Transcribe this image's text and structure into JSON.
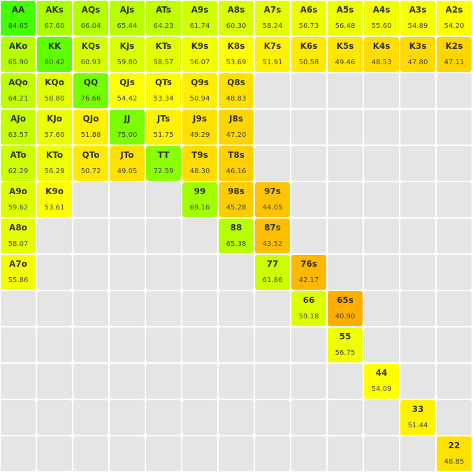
{
  "colors": {
    "empty": "#e5e5e5",
    "text": "#333333"
  },
  "ranks": [
    "A",
    "K",
    "Q",
    "J",
    "T",
    "9",
    "8",
    "7",
    "6",
    "5",
    "4",
    "3",
    "2"
  ],
  "rows": [
    [
      {
        "hand": "AA",
        "equity": "84.65"
      },
      {
        "hand": "AKs",
        "equity": "67.60"
      },
      {
        "hand": "AQs",
        "equity": "66.04"
      },
      {
        "hand": "AJs",
        "equity": "65.44"
      },
      {
        "hand": "ATs",
        "equity": "64.23"
      },
      {
        "hand": "A9s",
        "equity": "61.74"
      },
      {
        "hand": "A8s",
        "equity": "60.30"
      },
      {
        "hand": "A7s",
        "equity": "58.24"
      },
      {
        "hand": "A6s",
        "equity": "56.73"
      },
      {
        "hand": "A5s",
        "equity": "56.48"
      },
      {
        "hand": "A4s",
        "equity": "55.60"
      },
      {
        "hand": "A3s",
        "equity": "54.89"
      },
      {
        "hand": "A2s",
        "equity": "54.20"
      }
    ],
    [
      {
        "hand": "AKo",
        "equity": "65.90"
      },
      {
        "hand": "KK",
        "equity": "80.42"
      },
      {
        "hand": "KQs",
        "equity": "60.93"
      },
      {
        "hand": "KJs",
        "equity": "59.80"
      },
      {
        "hand": "KTs",
        "equity": "58.57"
      },
      {
        "hand": "K9s",
        "equity": "56.07"
      },
      {
        "hand": "K8s",
        "equity": "53.69"
      },
      {
        "hand": "K7s",
        "equity": "51.91"
      },
      {
        "hand": "K6s",
        "equity": "50.58"
      },
      {
        "hand": "K5s",
        "equity": "49.46"
      },
      {
        "hand": "K4s",
        "equity": "48.53"
      },
      {
        "hand": "K3s",
        "equity": "47.80"
      },
      {
        "hand": "K2s",
        "equity": "47.11"
      }
    ],
    [
      {
        "hand": "AQo",
        "equity": "64.21"
      },
      {
        "hand": "KQo",
        "equity": "58.80"
      },
      {
        "hand": "QQ",
        "equity": "76.66"
      },
      {
        "hand": "QJs",
        "equity": "54.42"
      },
      {
        "hand": "QTs",
        "equity": "53.34"
      },
      {
        "hand": "Q9s",
        "equity": "50.94"
      },
      {
        "hand": "Q8s",
        "equity": "48.83"
      },
      null,
      null,
      null,
      null,
      null,
      null
    ],
    [
      {
        "hand": "AJo",
        "equity": "63.57"
      },
      {
        "hand": "KJo",
        "equity": "57.60"
      },
      {
        "hand": "QJo",
        "equity": "51.88"
      },
      {
        "hand": "JJ",
        "equity": "75.00"
      },
      {
        "hand": "JTs",
        "equity": "51.75"
      },
      {
        "hand": "J9s",
        "equity": "49.29"
      },
      {
        "hand": "J8s",
        "equity": "47.20"
      },
      null,
      null,
      null,
      null,
      null,
      null
    ],
    [
      {
        "hand": "ATo",
        "equity": "62.29"
      },
      {
        "hand": "KTo",
        "equity": "56.29"
      },
      {
        "hand": "QTo",
        "equity": "50.72"
      },
      {
        "hand": "JTo",
        "equity": "49.05"
      },
      {
        "hand": "TT",
        "equity": "72.59"
      },
      {
        "hand": "T9s",
        "equity": "48.30"
      },
      {
        "hand": "T8s",
        "equity": "46.16"
      },
      null,
      null,
      null,
      null,
      null,
      null
    ],
    [
      {
        "hand": "A9o",
        "equity": "59.62"
      },
      {
        "hand": "K9o",
        "equity": "53.61"
      },
      null,
      null,
      null,
      {
        "hand": "99",
        "equity": "69.16"
      },
      {
        "hand": "98s",
        "equity": "45.28"
      },
      {
        "hand": "97s",
        "equity": "44.05"
      },
      null,
      null,
      null,
      null,
      null
    ],
    [
      {
        "hand": "A8o",
        "equity": "58.07"
      },
      null,
      null,
      null,
      null,
      null,
      {
        "hand": "88",
        "equity": "65.38"
      },
      {
        "hand": "87s",
        "equity": "43.52"
      },
      null,
      null,
      null,
      null,
      null
    ],
    [
      {
        "hand": "A7o",
        "equity": "55.86"
      },
      null,
      null,
      null,
      null,
      null,
      null,
      {
        "hand": "77",
        "equity": "61.86"
      },
      {
        "hand": "76s",
        "equity": "42.17"
      },
      null,
      null,
      null,
      null
    ],
    [
      null,
      null,
      null,
      null,
      null,
      null,
      null,
      null,
      {
        "hand": "66",
        "equity": "59.18"
      },
      {
        "hand": "65s",
        "equity": "40.90"
      },
      null,
      null,
      null
    ],
    [
      null,
      null,
      null,
      null,
      null,
      null,
      null,
      null,
      null,
      {
        "hand": "55",
        "equity": "56.75"
      },
      null,
      null,
      null
    ],
    [
      null,
      null,
      null,
      null,
      null,
      null,
      null,
      null,
      null,
      null,
      {
        "hand": "44",
        "equity": "54.09"
      },
      null,
      null
    ],
    [
      null,
      null,
      null,
      null,
      null,
      null,
      null,
      null,
      null,
      null,
      null,
      {
        "hand": "33",
        "equity": "51.44"
      },
      null
    ],
    [
      null,
      null,
      null,
      null,
      null,
      null,
      null,
      null,
      null,
      null,
      null,
      null,
      {
        "hand": "22",
        "equity": "48.85"
      }
    ]
  ]
}
